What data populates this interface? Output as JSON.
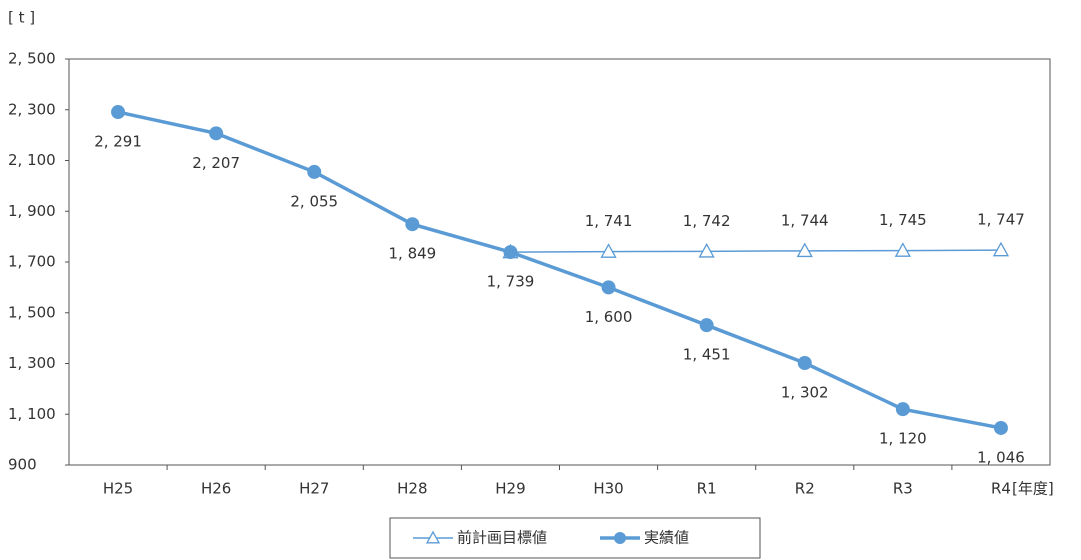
{
  "chart_data": {
    "type": "line",
    "y_unit": "[ t ]",
    "x_unit": "[年度]",
    "categories": [
      "H25",
      "H26",
      "H27",
      "H28",
      "H29",
      "H30",
      "R1",
      "R2",
      "R3",
      "R4"
    ],
    "ylim": [
      900,
      2500
    ],
    "yticks": [
      900,
      {
        "value": 1100,
        "label": "1, 100"
      },
      {
        "value": 1300,
        "label": "1, 300"
      },
      {
        "value": 1500,
        "label": "1, 500"
      },
      {
        "value": 1700,
        "label": "1, 700"
      },
      {
        "value": 1900,
        "label": "1, 900"
      },
      {
        "value": 2100,
        "label": "2, 100"
      },
      {
        "value": 2300,
        "label": "2, 300"
      },
      {
        "value": 2500,
        "label": "2, 500"
      }
    ],
    "grid": false,
    "series": [
      {
        "name": "前計画目標値",
        "color": "#5b9bd5",
        "marker": "triangle",
        "values": [
          null,
          null,
          null,
          null,
          1739,
          1741,
          1742,
          1744,
          1745,
          1747
        ],
        "value_labels": [
          null,
          null,
          null,
          null,
          null,
          "1, 741",
          "1, 742",
          "1, 744",
          "1, 745",
          "1, 747"
        ]
      },
      {
        "name": "実績値",
        "color": "#5b9bd5",
        "marker": "circle",
        "values": [
          2291,
          2207,
          2055,
          1849,
          1739,
          1600,
          1451,
          1302,
          1120,
          1046
        ],
        "value_labels": [
          "2, 291",
          "2, 207",
          "2, 055",
          "1, 849",
          "1, 739",
          "1, 600",
          "1, 451",
          "1, 302",
          "1, 120",
          "1, 046"
        ]
      }
    ]
  }
}
